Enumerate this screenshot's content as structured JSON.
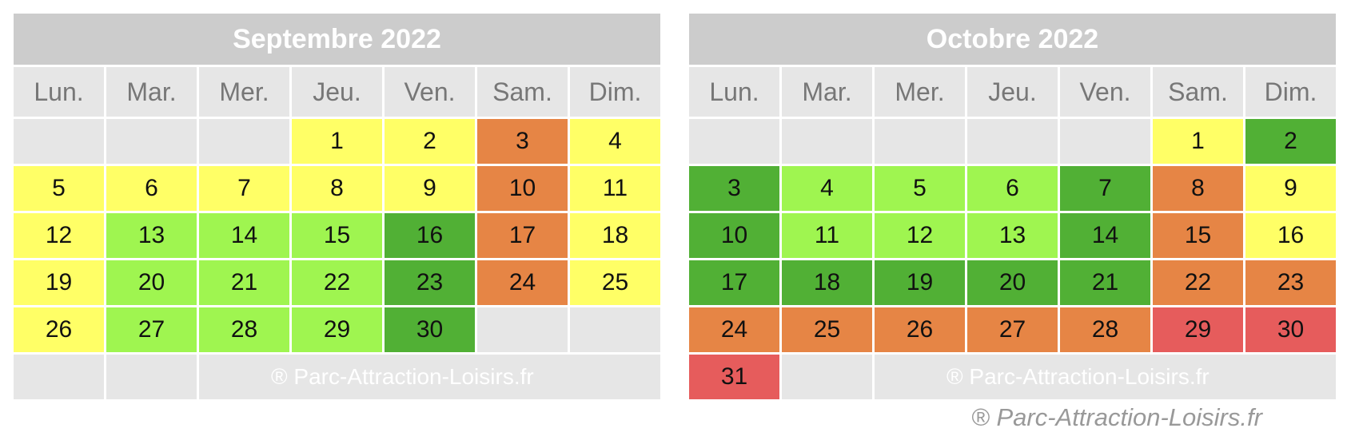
{
  "colors": {
    "yellow": "#ffff66",
    "orange": "#e68545",
    "lime": "#9ff550",
    "green": "#51b035",
    "red": "#e65c5c",
    "empty": "#e6e6e6",
    "header": "#cccccc"
  },
  "day_names": [
    "Lun.",
    "Mar.",
    "Mer.",
    "Jeu.",
    "Ven.",
    "Sam.",
    "Dim."
  ],
  "watermark": "® Parc-Attraction-Loisirs.fr",
  "footer_credit": "® Parc-Attraction-Loisirs.fr",
  "calendars": [
    {
      "title": "Septembre 2022",
      "weeks": [
        [
          null,
          null,
          null,
          [
            "1",
            "yellow"
          ],
          [
            "2",
            "yellow"
          ],
          [
            "3",
            "orange"
          ],
          [
            "4",
            "yellow"
          ]
        ],
        [
          [
            "5",
            "yellow"
          ],
          [
            "6",
            "yellow"
          ],
          [
            "7",
            "yellow"
          ],
          [
            "8",
            "yellow"
          ],
          [
            "9",
            "yellow"
          ],
          [
            "10",
            "orange"
          ],
          [
            "11",
            "yellow"
          ]
        ],
        [
          [
            "12",
            "yellow"
          ],
          [
            "13",
            "lime"
          ],
          [
            "14",
            "lime"
          ],
          [
            "15",
            "lime"
          ],
          [
            "16",
            "green"
          ],
          [
            "17",
            "orange"
          ],
          [
            "18",
            "yellow"
          ]
        ],
        [
          [
            "19",
            "yellow"
          ],
          [
            "20",
            "lime"
          ],
          [
            "21",
            "lime"
          ],
          [
            "22",
            "lime"
          ],
          [
            "23",
            "green"
          ],
          [
            "24",
            "orange"
          ],
          [
            "25",
            "yellow"
          ]
        ],
        [
          [
            "26",
            "yellow"
          ],
          [
            "27",
            "lime"
          ],
          [
            "28",
            "lime"
          ],
          [
            "29",
            "lime"
          ],
          [
            "30",
            "green"
          ],
          null,
          null
        ]
      ],
      "last_row": {
        "leading_empty": 2,
        "watermark_start": 2
      }
    },
    {
      "title": "Octobre 2022",
      "weeks": [
        [
          null,
          null,
          null,
          null,
          null,
          [
            "1",
            "yellow"
          ],
          [
            "2",
            "green"
          ]
        ],
        [
          [
            "3",
            "green"
          ],
          [
            "4",
            "lime"
          ],
          [
            "5",
            "lime"
          ],
          [
            "6",
            "lime"
          ],
          [
            "7",
            "green"
          ],
          [
            "8",
            "orange"
          ],
          [
            "9",
            "yellow"
          ]
        ],
        [
          [
            "10",
            "green"
          ],
          [
            "11",
            "lime"
          ],
          [
            "12",
            "lime"
          ],
          [
            "13",
            "lime"
          ],
          [
            "14",
            "green"
          ],
          [
            "15",
            "orange"
          ],
          [
            "16",
            "yellow"
          ]
        ],
        [
          [
            "17",
            "green"
          ],
          [
            "18",
            "green"
          ],
          [
            "19",
            "green"
          ],
          [
            "20",
            "green"
          ],
          [
            "21",
            "green"
          ],
          [
            "22",
            "orange"
          ],
          [
            "23",
            "orange"
          ]
        ],
        [
          [
            "24",
            "orange"
          ],
          [
            "25",
            "orange"
          ],
          [
            "26",
            "orange"
          ],
          [
            "27",
            "orange"
          ],
          [
            "28",
            "orange"
          ],
          [
            "29",
            "red"
          ],
          [
            "30",
            "red"
          ]
        ]
      ],
      "last_row": {
        "first_cell": [
          "31",
          "red"
        ],
        "leading_empty": 1,
        "watermark_start": 2
      }
    }
  ]
}
